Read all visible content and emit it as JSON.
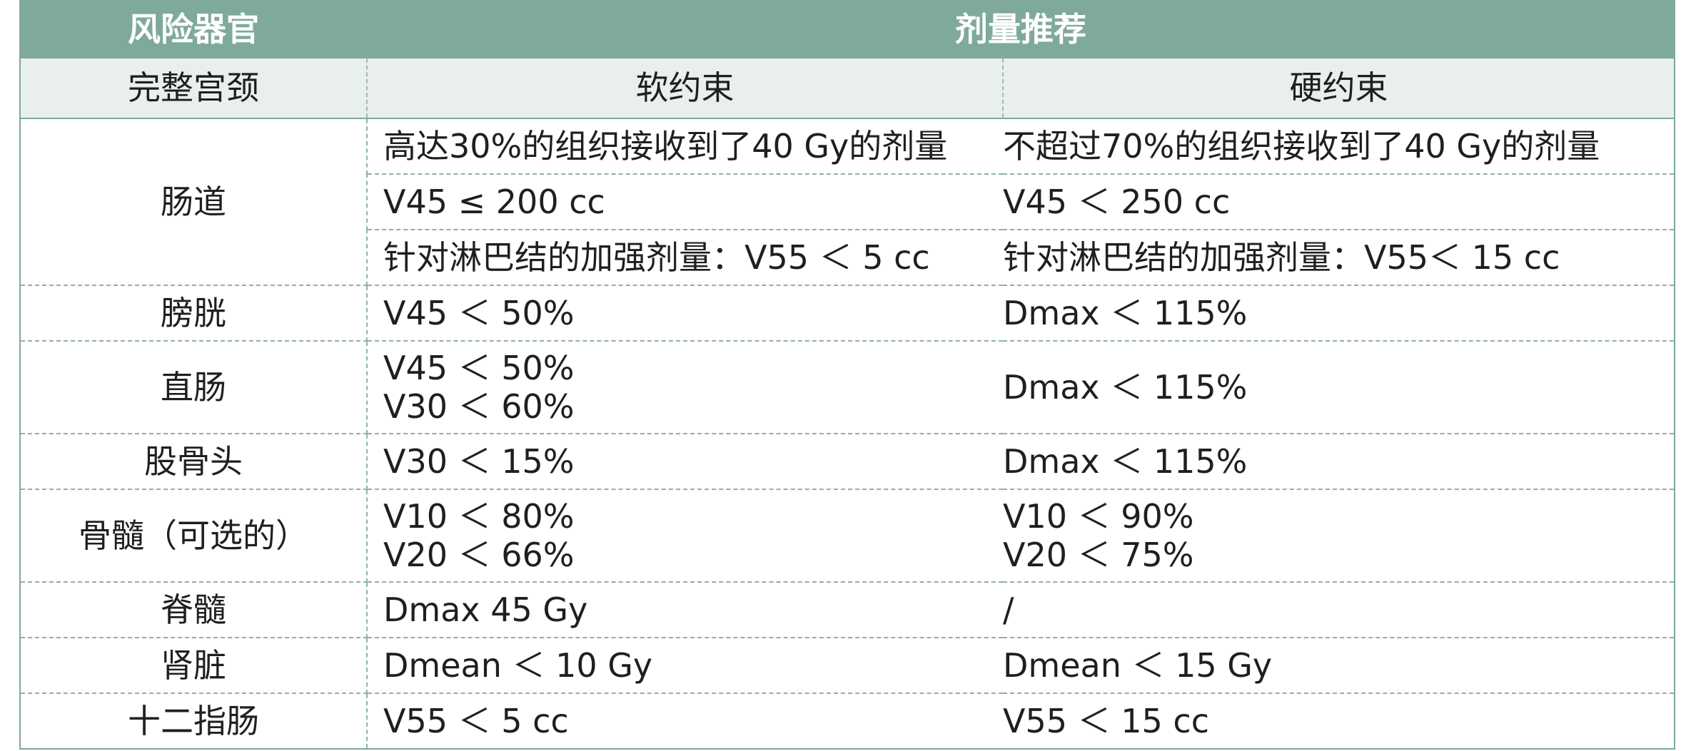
{
  "header": {
    "col1": "风险器官",
    "col2": "剂量推荐"
  },
  "subheader": {
    "col1": "完整宫颈",
    "col2": "软约束",
    "col3": "硬约束"
  },
  "rows": [
    {
      "organ": "肠道",
      "soft": [
        "高达30%的组织接收到了40 Gy的剂量"
      ],
      "hard": [
        "不超过70%的组织接收到了40 Gy的剂量"
      ]
    },
    {
      "soft": [
        "V45 ≤ 200 cc"
      ],
      "hard": [
        "V45 ＜ 250 cc"
      ]
    },
    {
      "soft": [
        "针对淋巴结的加强剂量：V55 ＜ 5 cc"
      ],
      "hard": [
        "针对淋巴结的加强剂量：V55＜ 15 cc"
      ]
    },
    {
      "organ": "膀胱",
      "soft": [
        "V45 ＜ 50%"
      ],
      "hard": [
        "Dmax ＜ 115%"
      ]
    },
    {
      "organ": "直肠",
      "soft": [
        "V45 ＜ 50%",
        "V30 ＜ 60%"
      ],
      "hard": [
        "Dmax ＜ 115%"
      ]
    },
    {
      "organ": "股骨头",
      "soft": [
        "V30 ＜ 15%"
      ],
      "hard": [
        "Dmax ＜ 115%"
      ]
    },
    {
      "organ": "骨髓（可选的）",
      "soft": [
        "V10 ＜ 80%",
        "V20 ＜ 66%"
      ],
      "hard": [
        "V10 ＜ 90%",
        "V20 ＜ 75%"
      ]
    },
    {
      "organ": "脊髓",
      "soft": [
        "Dmax 45 Gy"
      ],
      "hard": [
        "/"
      ]
    },
    {
      "organ": "肾脏",
      "soft": [
        "Dmean ＜ 10 Gy"
      ],
      "hard": [
        "Dmean ＜ 15 Gy"
      ]
    },
    {
      "organ": "十二指肠",
      "soft": [
        "V55 ＜ 5 cc"
      ],
      "hard": [
        "V55 ＜ 15 cc"
      ]
    }
  ],
  "colors": {
    "header_bg": "#7fa99d",
    "subheader_bg": "#e8efec",
    "grid": "#8fb1a7"
  }
}
